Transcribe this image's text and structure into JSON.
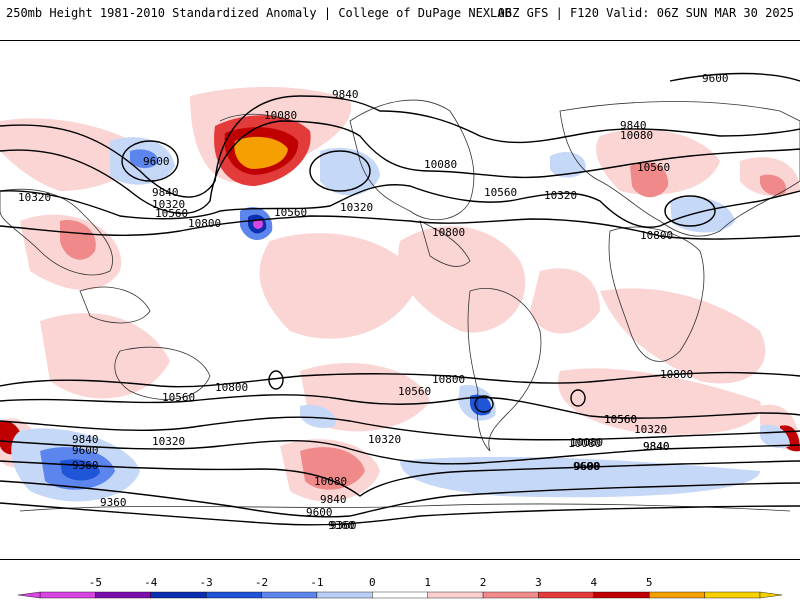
{
  "header": {
    "left": "250mb Height 1981-2010 Standardized Anomaly | College of DuPage NEXLAB",
    "right": "06Z GFS | F120 Valid: 06Z SUN MAR 30 2025"
  },
  "map": {
    "contour_labels": [
      "9600",
      "9840",
      "10080",
      "10080",
      "10320",
      "10560",
      "10800",
      "9600",
      "9840",
      "10320",
      "10560",
      "10800",
      "10320",
      "10560",
      "10080",
      "9840",
      "10320",
      "10560",
      "10800",
      "10800",
      "10560",
      "10800",
      "10560",
      "10320",
      "10080",
      "9840",
      "9600",
      "9360",
      "9840",
      "9600",
      "9360",
      "10320",
      "10560",
      "10080",
      "9840",
      "9600",
      "9360",
      "10800",
      "10560",
      "10320",
      "10080",
      "9840",
      "9600",
      "9360"
    ]
  },
  "colorbar": {
    "ticks": [
      "-5",
      "-4",
      "-3",
      "-2",
      "-1",
      "0",
      "1",
      "2",
      "3",
      "4",
      "5"
    ],
    "colors": [
      "#d846e0",
      "#7a0fb0",
      "#0a2fb0",
      "#1f56d8",
      "#5c86ee",
      "#b9cff7",
      "#ffffff",
      "#fbcfcf",
      "#f28c8c",
      "#e33a3a",
      "#c00000",
      "#f5a000",
      "#f7d000"
    ]
  }
}
